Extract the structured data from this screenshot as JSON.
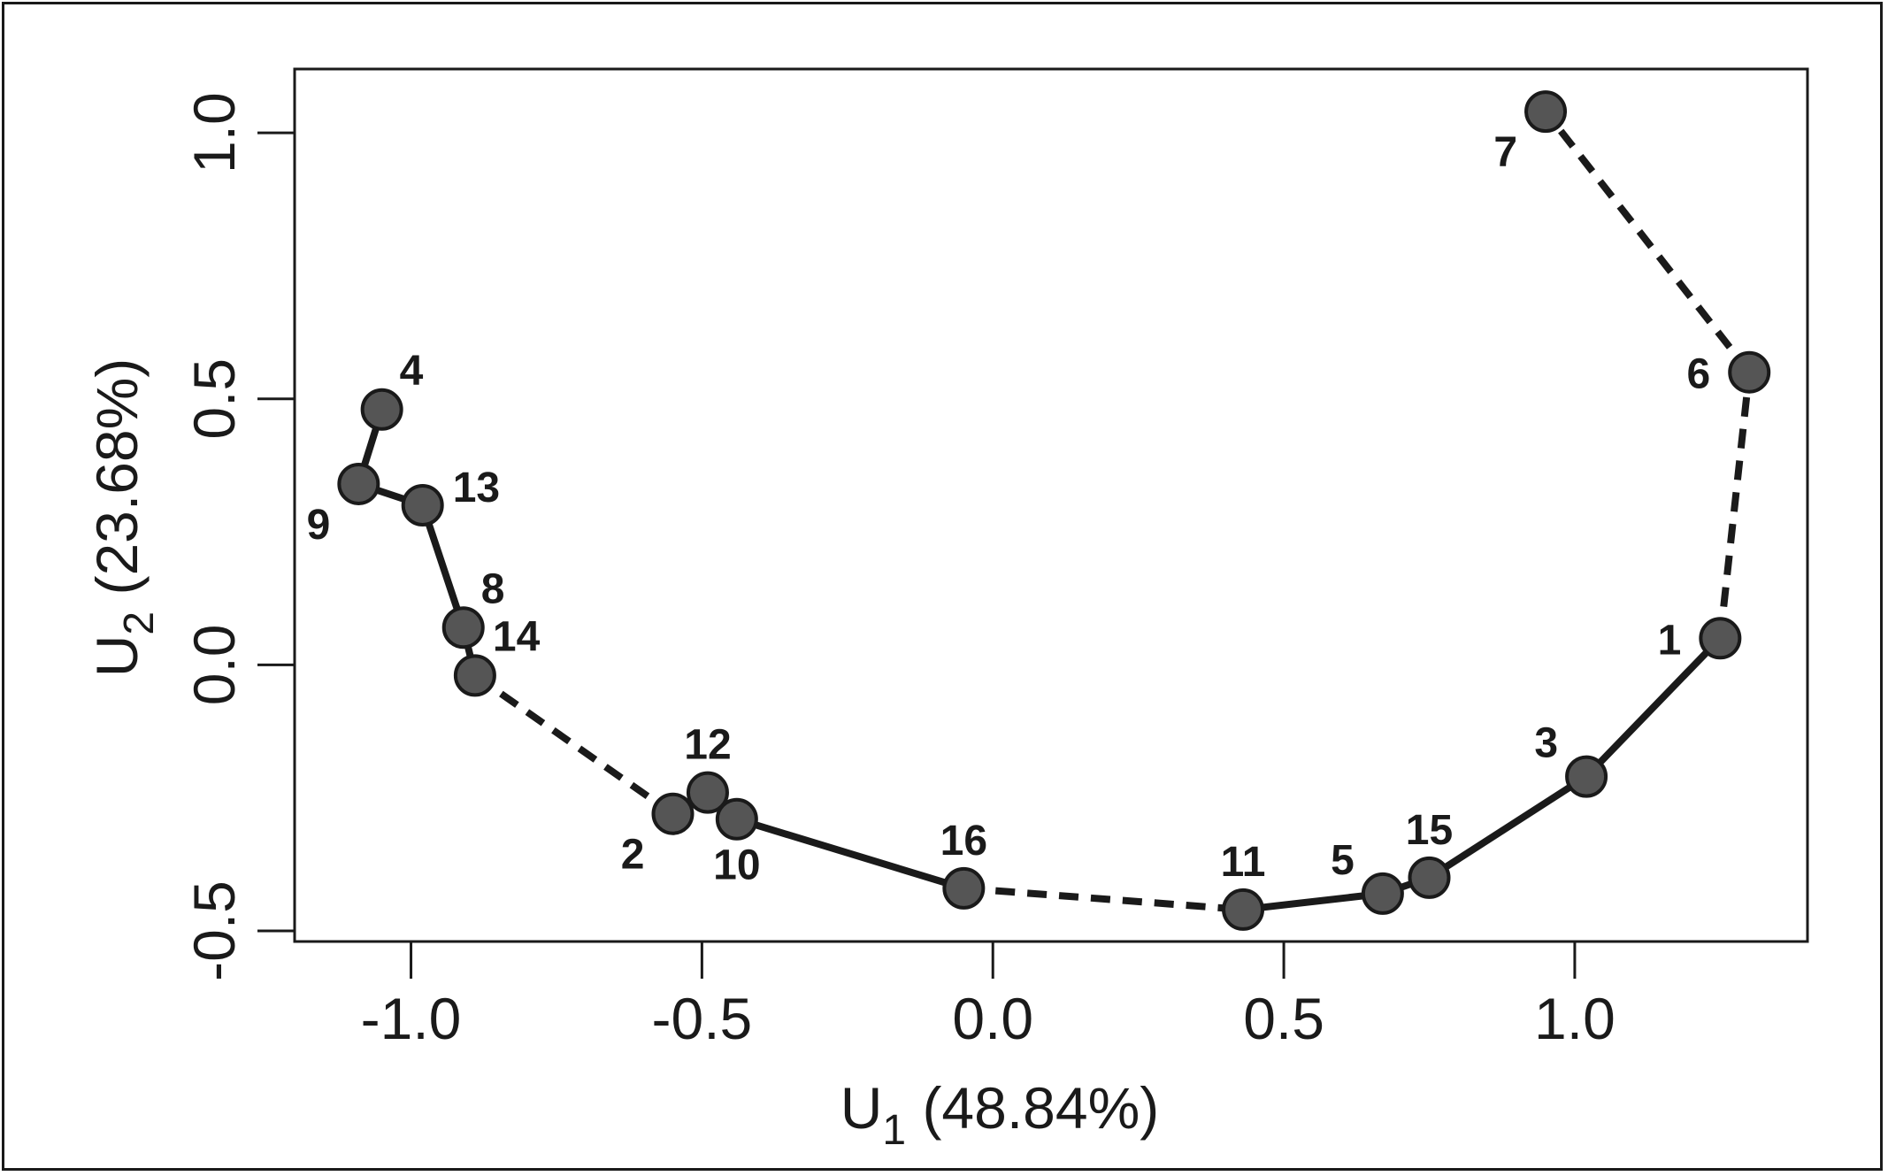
{
  "chart_data": {
    "type": "scatter",
    "title": "",
    "xlabel": {
      "main": "U",
      "sub": "1",
      "rest": " (48.84%)"
    },
    "ylabel": {
      "main": "U",
      "sub": "2",
      "rest": " (23.68%)"
    },
    "xlim": [
      -1.2,
      1.4
    ],
    "ylim": [
      -0.52,
      1.12
    ],
    "xticks": [
      -1.0,
      -0.5,
      0.0,
      0.5,
      1.0
    ],
    "xtick_labels": [
      "-1.0",
      "-0.5",
      "0.0",
      "0.5",
      "1.0"
    ],
    "yticks": [
      -0.5,
      0.0,
      0.5,
      1.0
    ],
    "ytick_labels": [
      "-0.5",
      "0.0",
      "0.5",
      "1.0"
    ],
    "grid": false,
    "points": [
      {
        "label": "1",
        "x": 1.25,
        "y": 0.05,
        "label_pos": "left"
      },
      {
        "label": "2",
        "x": -0.55,
        "y": -0.28,
        "label_pos": "below-left"
      },
      {
        "label": "3",
        "x": 1.02,
        "y": -0.21,
        "label_pos": "above-left"
      },
      {
        "label": "4",
        "x": -1.05,
        "y": 0.48,
        "label_pos": "above-right"
      },
      {
        "label": "5",
        "x": 0.67,
        "y": -0.43,
        "label_pos": "above-left"
      },
      {
        "label": "6",
        "x": 1.3,
        "y": 0.55,
        "label_pos": "left"
      },
      {
        "label": "7",
        "x": 0.95,
        "y": 1.04,
        "label_pos": "below-left"
      },
      {
        "label": "8",
        "x": -0.91,
        "y": 0.07,
        "label_pos": "above-right"
      },
      {
        "label": "9",
        "x": -1.09,
        "y": 0.34,
        "label_pos": "below-left"
      },
      {
        "label": "10",
        "x": -0.44,
        "y": -0.29,
        "label_pos": "below"
      },
      {
        "label": "11",
        "x": 0.43,
        "y": -0.46,
        "label_pos": "above"
      },
      {
        "label": "12",
        "x": -0.49,
        "y": -0.24,
        "label_pos": "above"
      },
      {
        "label": "13",
        "x": -0.98,
        "y": 0.3,
        "label_pos": "right"
      },
      {
        "label": "14",
        "x": -0.89,
        "y": -0.02,
        "label_pos": "above-right"
      },
      {
        "label": "15",
        "x": 0.75,
        "y": -0.4,
        "label_pos": "above"
      },
      {
        "label": "16",
        "x": -0.05,
        "y": -0.42,
        "label_pos": "above"
      }
    ],
    "connections": [
      {
        "from": "4",
        "to": "9",
        "style": "solid"
      },
      {
        "from": "9",
        "to": "13",
        "style": "solid"
      },
      {
        "from": "13",
        "to": "8",
        "style": "solid"
      },
      {
        "from": "8",
        "to": "14",
        "style": "solid"
      },
      {
        "from": "14",
        "to": "2",
        "style": "dashed"
      },
      {
        "from": "2",
        "to": "12",
        "style": "solid"
      },
      {
        "from": "12",
        "to": "10",
        "style": "solid"
      },
      {
        "from": "10",
        "to": "16",
        "style": "solid"
      },
      {
        "from": "16",
        "to": "11",
        "style": "dashed"
      },
      {
        "from": "11",
        "to": "5",
        "style": "solid"
      },
      {
        "from": "5",
        "to": "15",
        "style": "solid"
      },
      {
        "from": "15",
        "to": "3",
        "style": "solid"
      },
      {
        "from": "3",
        "to": "1",
        "style": "solid"
      },
      {
        "from": "1",
        "to": "6",
        "style": "dashed"
      },
      {
        "from": "6",
        "to": "7",
        "style": "dashed"
      }
    ],
    "colors": {
      "marker_fill": "#555555",
      "marker_stroke": "#1a1a1a",
      "line": "#1a1a1a",
      "text": "#1a1a1a"
    }
  }
}
